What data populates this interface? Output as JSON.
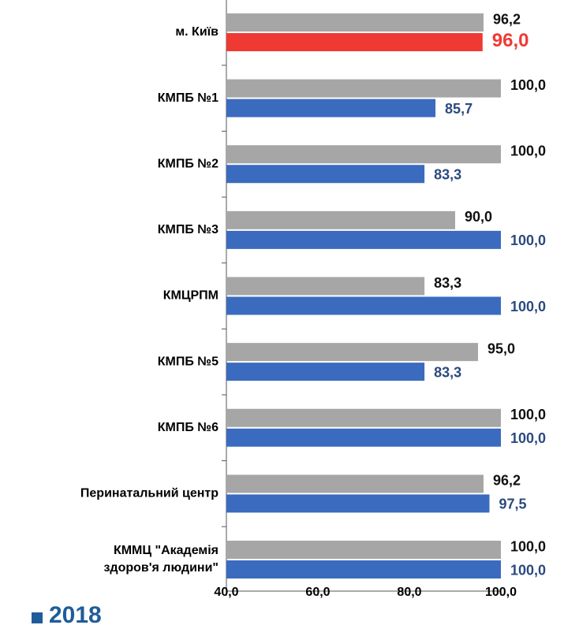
{
  "chart_data": {
    "type": "hbar",
    "categories": [
      "м. Київ",
      "КМПБ №1",
      "КМПБ №2",
      "КМПБ №3",
      "КМЦРПМ",
      "КМПБ №5",
      "КМПБ №6",
      "Перинатальний центр",
      "КММЦ \"Академія\nздоров'я людини\""
    ],
    "series": [
      {
        "name": "2018",
        "color": "#a6a6a6",
        "values": [
          96.2,
          100,
          100,
          90,
          83.3,
          95,
          100,
          96.2,
          100
        ],
        "value_labels": [
          "96,2",
          "100,0",
          "100,0",
          "90,0",
          "83,3",
          "95,0",
          "100,0",
          "96,2",
          "100,0"
        ]
      },
      {
        "color": "#3a6bbf",
        "colors": [
          "#ef3a33",
          "#3a6bbf",
          "#3a6bbf",
          "#3a6bbf",
          "#3a6bbf",
          "#3a6bbf",
          "#3a6bbf",
          "#3a6bbf",
          "#3a6bbf"
        ],
        "values": [
          96.0,
          85.7,
          83.3,
          100,
          100,
          83.3,
          100,
          97.5,
          100
        ],
        "value_labels": [
          "96,0",
          "85,7",
          "83,3",
          "100,0",
          "100,0",
          "83,3",
          "100,0",
          "97,5",
          "100,0"
        ]
      }
    ],
    "xlim": [
      40,
      100
    ],
    "xticks": [
      {
        "value": 40,
        "label": "40,0"
      },
      {
        "value": 60,
        "label": "60,0"
      },
      {
        "value": 80,
        "label": "80,0"
      },
      {
        "value": 100,
        "label": "100,0"
      }
    ]
  }
}
